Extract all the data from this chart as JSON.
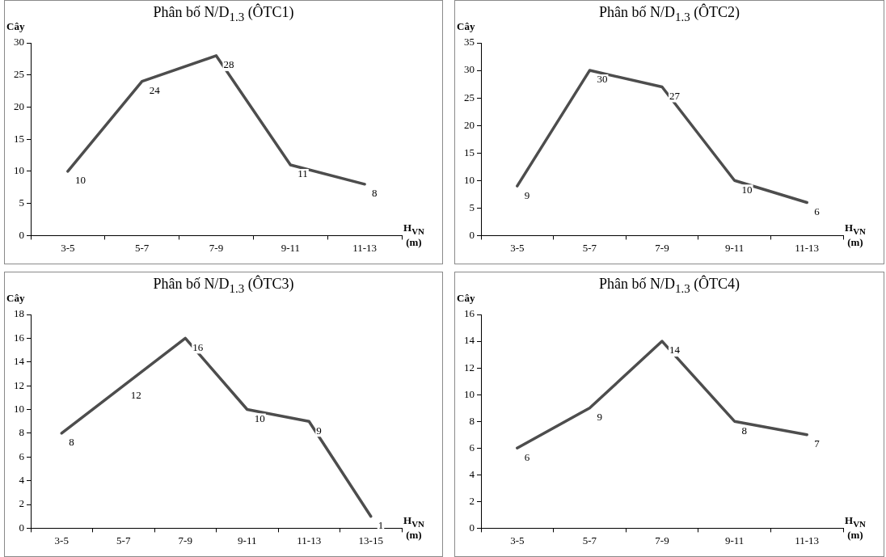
{
  "chart_data": [
    {
      "type": "line",
      "title": "Phân bố N/D$_{1.3}$ (ÔTC1)",
      "ylabel": "Cây",
      "xlabel": "H$_{VN}$ (m)",
      "categories": [
        "3-5",
        "5-7",
        "7-9",
        "9-11",
        "11-13"
      ],
      "series": [
        {
          "color": "#4d4d4d",
          "values": [
            10,
            24,
            28,
            11,
            8
          ]
        }
      ],
      "ylim": [
        0,
        30
      ],
      "yticks": [
        0,
        5,
        10,
        15,
        20,
        25,
        30
      ],
      "data_labels": true,
      "marker": "none"
    },
    {
      "type": "line",
      "title": "Phân bố N/D$_{1.3}$ (ÔTC2)",
      "ylabel": "Cây",
      "xlabel": "H$_{VN}$ (m)",
      "categories": [
        "3-5",
        "5-7",
        "7-9",
        "9-11",
        "11-13"
      ],
      "series": [
        {
          "color": "#4d4d4d",
          "values": [
            9,
            30,
            27,
            10,
            6
          ]
        }
      ],
      "ylim": [
        0,
        35
      ],
      "yticks": [
        0,
        5,
        10,
        15,
        20,
        25,
        30,
        35
      ],
      "data_labels": true,
      "marker": "none"
    },
    {
      "type": "line",
      "title": "Phân bố N/D$_{1.3}$ (ÔTC3)",
      "ylabel": "Cây",
      "xlabel": "H$_{VN}$ (m)",
      "categories": [
        "3-5",
        "5-7",
        "7-9",
        "9-11",
        "11-13",
        "13-15"
      ],
      "series": [
        {
          "color": "#4d4d4d",
          "values": [
            8,
            12,
            16,
            10,
            9,
            1
          ]
        }
      ],
      "ylim": [
        0,
        18
      ],
      "yticks": [
        0,
        2,
        4,
        6,
        8,
        10,
        12,
        14,
        16,
        18
      ],
      "data_labels": true,
      "marker": "none"
    },
    {
      "type": "line",
      "title": "Phân bố N/D$_{1.3}$ (ÔTC4)",
      "ylabel": "Cây",
      "xlabel": "H$_{VN}$ (m)",
      "categories": [
        "3-5",
        "5-7",
        "7-9",
        "9-11",
        "11-13"
      ],
      "series": [
        {
          "color": "#4d4d4d",
          "values": [
            6,
            9,
            14,
            8,
            7
          ]
        }
      ],
      "ylim": [
        0,
        16
      ],
      "yticks": [
        0,
        2,
        4,
        6,
        8,
        10,
        12,
        14,
        16
      ],
      "data_labels": true,
      "marker": "none"
    }
  ]
}
